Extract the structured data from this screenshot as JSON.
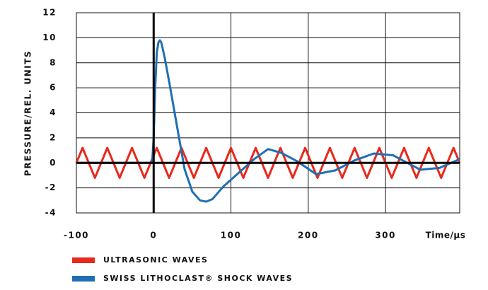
{
  "chart_data": {
    "type": "line",
    "y_label": "PRESSURE/REL. UNITS",
    "x_label": "Time/µs",
    "xlim": [
      -100,
      396
    ],
    "xticks": [
      -100,
      0,
      100,
      200,
      300
    ],
    "ylim": [
      -4,
      12
    ],
    "yticks": [
      -4,
      -2,
      0,
      2,
      4,
      6,
      8,
      10,
      12
    ],
    "grid": true,
    "series": [
      {
        "name": "ULTRASONIC WAVES",
        "color": "#e8291c",
        "x": [
          -100,
          -92,
          -84,
          -76,
          -68,
          -60,
          -52,
          -44,
          -36,
          -28,
          -20,
          -12,
          -4,
          4,
          12,
          20,
          28,
          36,
          44,
          52,
          60,
          68,
          76,
          84,
          92,
          100,
          108,
          116,
          124,
          132,
          140,
          148,
          156,
          164,
          172,
          180,
          188,
          196,
          204,
          212,
          220,
          228,
          236,
          244,
          252,
          260,
          268,
          276,
          284,
          292,
          300,
          308,
          316,
          324,
          332,
          340,
          348,
          356,
          364,
          372,
          380,
          388,
          396
        ],
        "values": [
          0,
          1.2,
          0,
          -1.2,
          0,
          1.2,
          0,
          -1.2,
          0,
          1.2,
          0,
          -1.2,
          0,
          1.2,
          0,
          -1.2,
          0,
          1.2,
          0,
          -1.2,
          0,
          1.2,
          0,
          -1.2,
          0,
          1.2,
          0,
          -1.2,
          0,
          1.2,
          0,
          -1.2,
          0,
          1.2,
          0,
          -1.2,
          0,
          1.2,
          0,
          -1.2,
          0,
          1.2,
          0,
          -1.2,
          0,
          1.2,
          0,
          -1.2,
          0,
          1.2,
          0,
          -1.2,
          0,
          1.2,
          0,
          -1.2,
          0,
          1.2,
          0,
          -1.2,
          0,
          1.2,
          0
        ]
      },
      {
        "name": "SWISS LITHOCLAST® SHOCK WAVES",
        "color": "#1f6fb2",
        "x": [
          -100,
          -2,
          0,
          2,
          4,
          6,
          8,
          10,
          14,
          20,
          30,
          40,
          50,
          60,
          68,
          76,
          90,
          110,
          130,
          148,
          165,
          185,
          210,
          235,
          260,
          285,
          310,
          345,
          370,
          396
        ],
        "values": [
          0,
          0,
          2,
          6,
          8.8,
          9.6,
          9.8,
          9.6,
          8.5,
          6.5,
          3.0,
          -0.5,
          -2.3,
          -3.0,
          -3.1,
          -2.9,
          -1.9,
          -0.8,
          0.3,
          1.1,
          0.8,
          0.15,
          -0.9,
          -0.6,
          0.2,
          0.75,
          0.6,
          -0.55,
          -0.4,
          0.3
        ]
      }
    ]
  }
}
